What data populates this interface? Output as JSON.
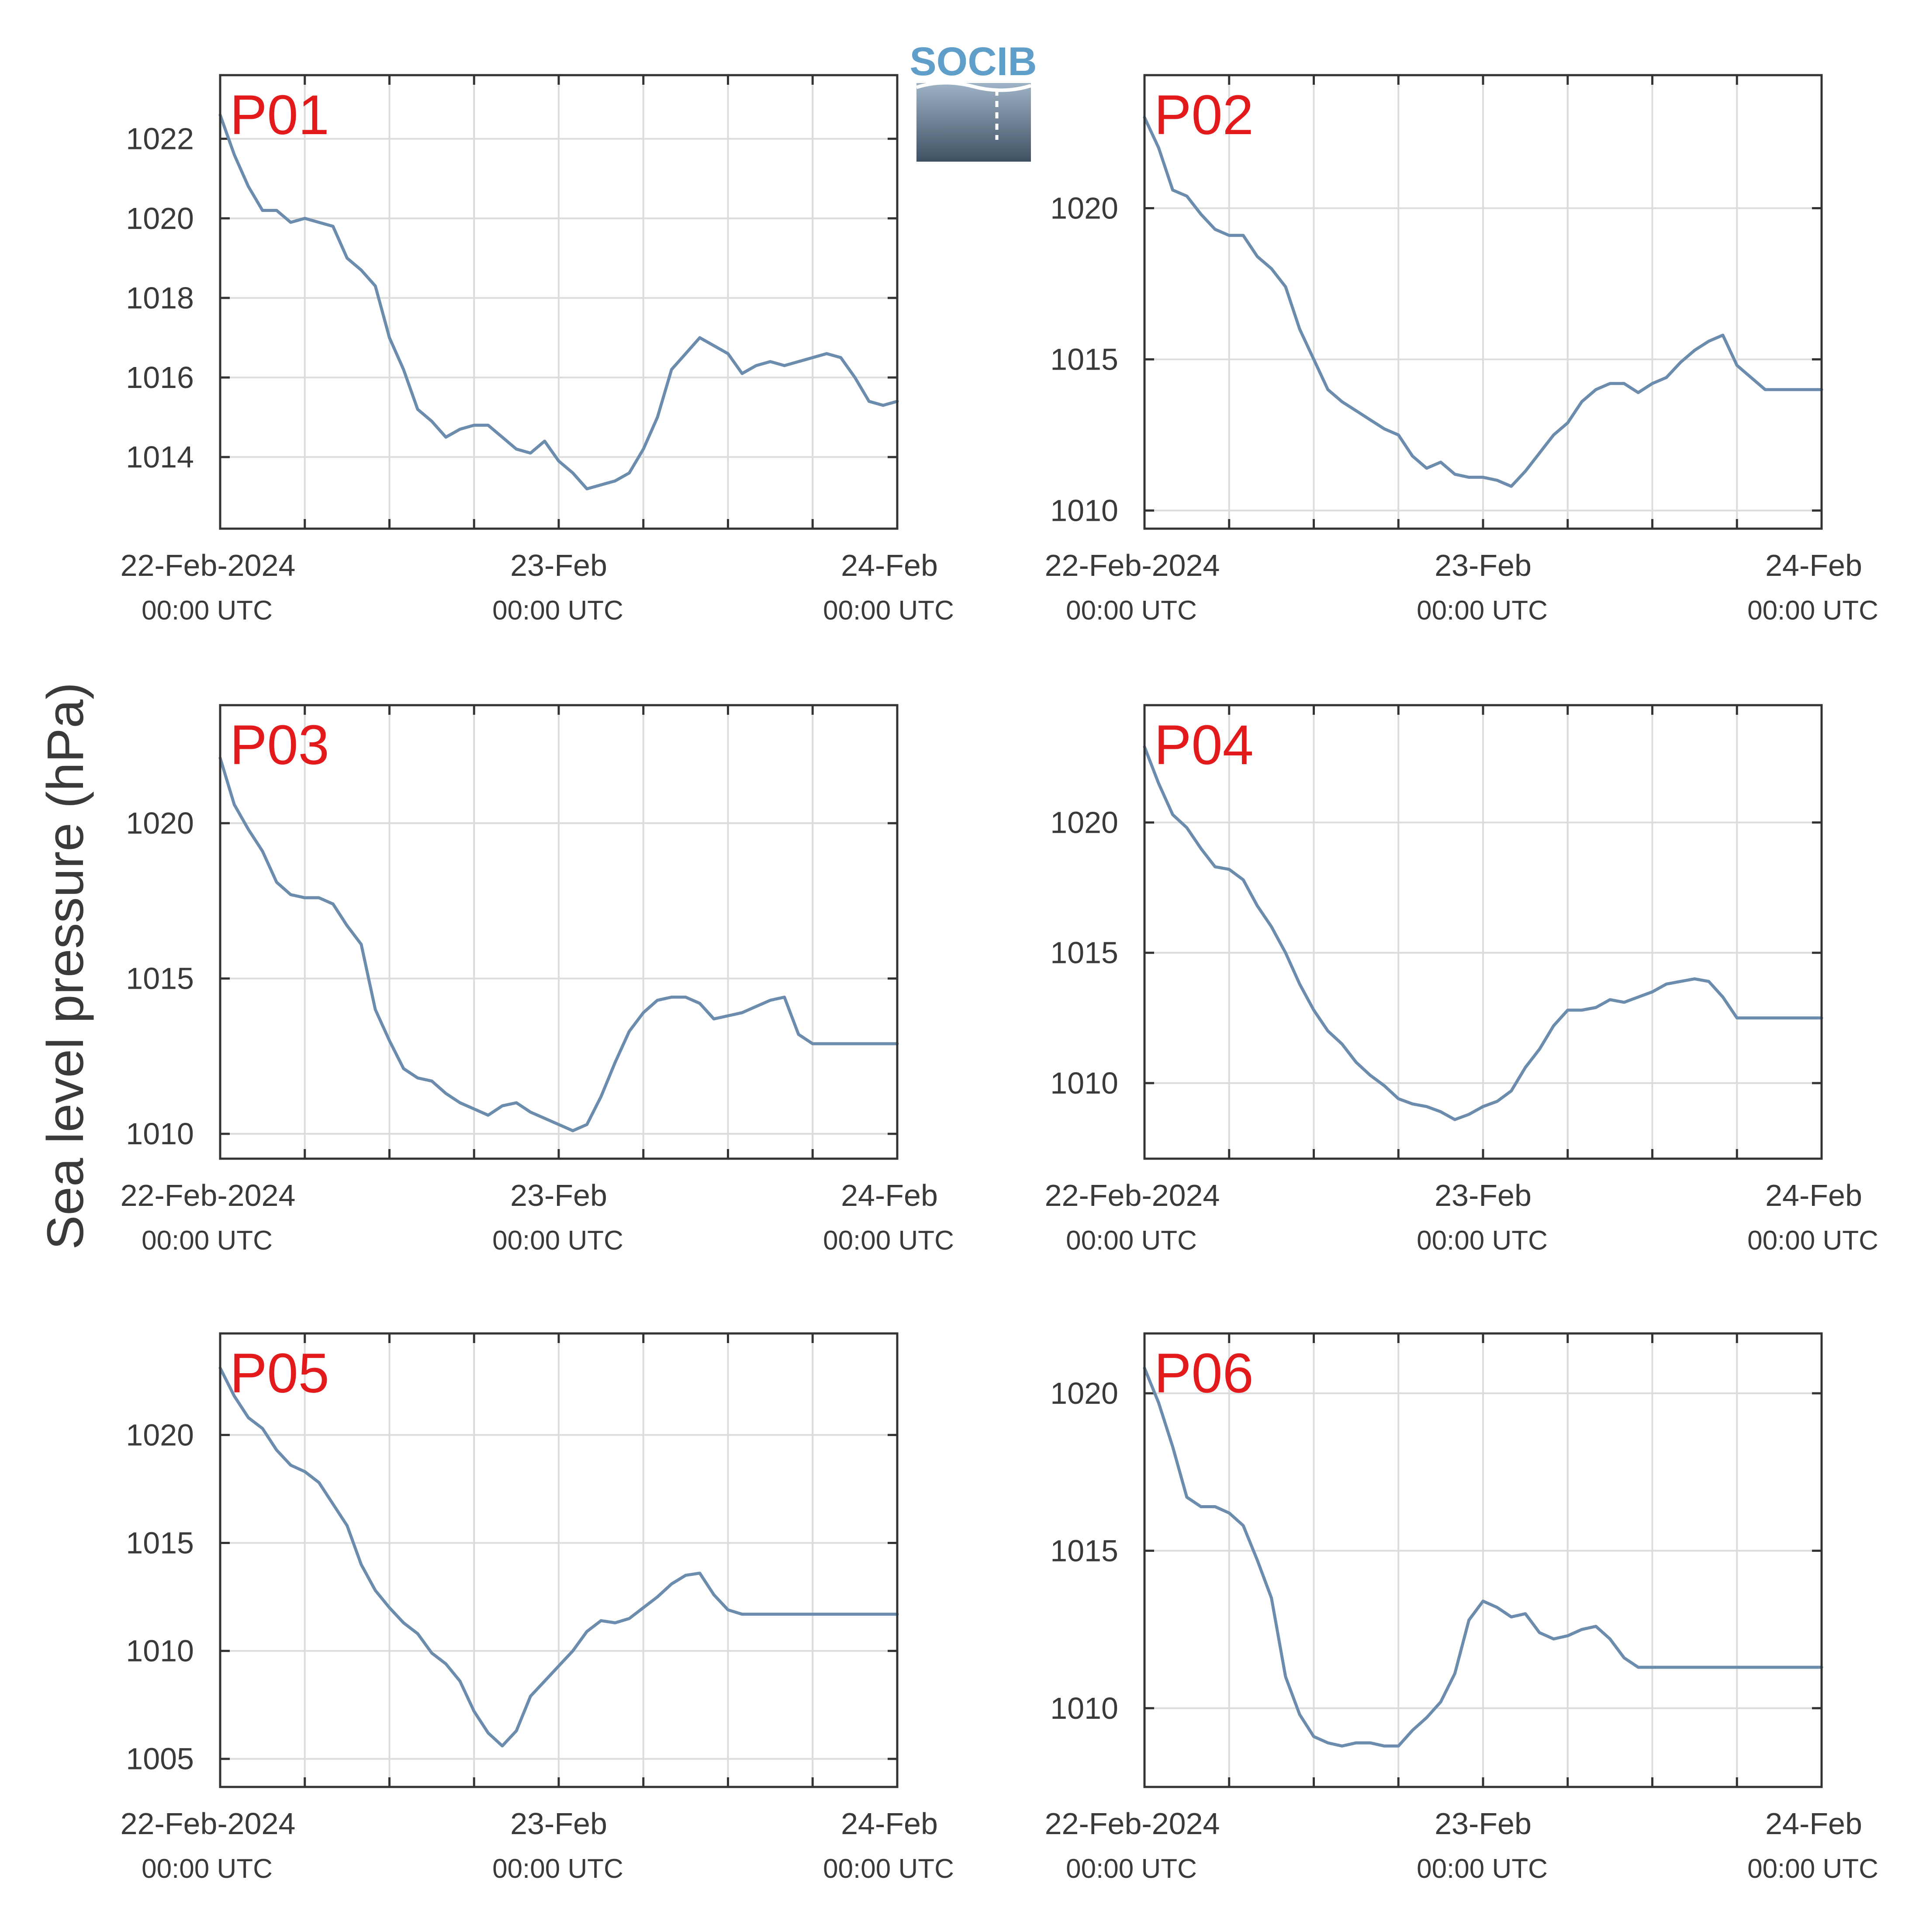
{
  "figure": {
    "ylabel": "Sea level pressure (hPa)",
    "logo_text": "SOCIB",
    "colors": {
      "series": "#6b8cad",
      "panel_label": "#e31a1c",
      "grid": "#dcdcdc",
      "frame": "#333333",
      "text": "#3a3a3a"
    }
  },
  "chart_data": [
    {
      "type": "line",
      "panel": "P01",
      "x_range": [
        "2024-02-22 00:00 UTC",
        "2024-02-24 00:00 UTC"
      ],
      "ylim": [
        1012.2,
        1023.6
      ],
      "yticks": [
        1014,
        1016,
        1018,
        1020,
        1022
      ],
      "xtick_labels": [
        {
          "main": "22-Feb-2024",
          "sub": "00:00 UTC"
        },
        {
          "main": "23-Feb",
          "sub": "00:00 UTC"
        },
        {
          "main": "24-Feb",
          "sub": "00:00 UTC"
        }
      ],
      "grid": true,
      "x_hours": [
        0,
        1,
        2,
        3,
        4,
        5,
        6,
        7,
        8,
        9,
        10,
        11,
        12,
        13,
        14,
        15,
        16,
        17,
        18,
        19,
        20,
        21,
        22,
        23,
        24,
        25,
        26,
        27,
        28,
        29,
        30,
        31,
        32,
        33,
        34,
        35,
        36,
        37,
        38,
        39,
        40,
        41,
        42,
        43,
        44,
        45,
        46,
        47,
        48
      ],
      "values": [
        1022.6,
        1021.6,
        1020.8,
        1020.2,
        1020.2,
        1019.9,
        1020.0,
        1019.9,
        1019.8,
        1019.0,
        1018.7,
        1018.3,
        1017.0,
        1016.2,
        1015.2,
        1014.9,
        1014.5,
        1014.7,
        1014.8,
        1014.8,
        1014.5,
        1014.2,
        1014.1,
        1014.4,
        1013.9,
        1013.6,
        1013.2,
        1013.3,
        1013.4,
        1013.6,
        1014.2,
        1015.0,
        1016.2,
        1016.6,
        1017.0,
        1016.8,
        1016.6,
        1016.1,
        1016.3,
        1016.4,
        1016.3,
        1016.4,
        1016.5,
        1016.6,
        1016.5,
        1016.0,
        1015.4,
        1015.3,
        1015.4
      ]
    },
    {
      "type": "line",
      "panel": "P02",
      "x_range": [
        "2024-02-22 00:00 UTC",
        "2024-02-24 00:00 UTC"
      ],
      "ylim": [
        1009.4,
        1024.4
      ],
      "yticks": [
        1010,
        1015,
        1020
      ],
      "xtick_labels": [
        {
          "main": "22-Feb-2024",
          "sub": "00:00 UTC"
        },
        {
          "main": "23-Feb",
          "sub": "00:00 UTC"
        },
        {
          "main": "24-Feb",
          "sub": "00:00 UTC"
        }
      ],
      "grid": true,
      "x_hours": [
        0,
        1,
        2,
        3,
        4,
        5,
        6,
        7,
        8,
        9,
        10,
        11,
        12,
        13,
        14,
        15,
        16,
        17,
        18,
        19,
        20,
        21,
        22,
        23,
        24,
        25,
        26,
        27,
        28,
        29,
        30,
        31,
        32,
        33,
        34,
        35,
        36,
        37,
        38,
        39,
        40,
        41,
        42,
        43,
        44,
        45,
        46,
        47,
        48
      ],
      "values": [
        1023.0,
        1022.0,
        1020.6,
        1020.4,
        1019.8,
        1019.3,
        1019.1,
        1019.1,
        1018.4,
        1018.0,
        1017.4,
        1016.0,
        1015.0,
        1014.0,
        1013.6,
        1013.3,
        1013.0,
        1012.7,
        1012.5,
        1011.8,
        1011.4,
        1011.6,
        1011.2,
        1011.1,
        1011.1,
        1011.0,
        1010.8,
        1011.3,
        1011.9,
        1012.5,
        1012.9,
        1013.6,
        1014.0,
        1014.2,
        1014.2,
        1013.9,
        1014.2,
        1014.4,
        1014.9,
        1015.3,
        1015.6,
        1015.8,
        1014.8,
        1014.4,
        1014.0,
        1014.0,
        1014.0,
        1014.0,
        1014.0
      ]
    },
    {
      "type": "line",
      "panel": "P03",
      "x_range": [
        "2024-02-22 00:00 UTC",
        "2024-02-24 00:00 UTC"
      ],
      "ylim": [
        1009.2,
        1023.8
      ],
      "yticks": [
        1010,
        1015,
        1020
      ],
      "xtick_labels": [
        {
          "main": "22-Feb-2024",
          "sub": "00:00 UTC"
        },
        {
          "main": "23-Feb",
          "sub": "00:00 UTC"
        },
        {
          "main": "24-Feb",
          "sub": "00:00 UTC"
        }
      ],
      "grid": true,
      "x_hours": [
        0,
        1,
        2,
        3,
        4,
        5,
        6,
        7,
        8,
        9,
        10,
        11,
        12,
        13,
        14,
        15,
        16,
        17,
        18,
        19,
        20,
        21,
        22,
        23,
        24,
        25,
        26,
        27,
        28,
        29,
        30,
        31,
        32,
        33,
        34,
        35,
        36,
        37,
        38,
        39,
        40,
        41,
        42,
        43,
        44,
        45,
        46,
        47,
        48
      ],
      "values": [
        1022.1,
        1020.6,
        1019.8,
        1019.1,
        1018.1,
        1017.7,
        1017.6,
        1017.6,
        1017.4,
        1016.7,
        1016.1,
        1014.0,
        1013.0,
        1012.1,
        1011.8,
        1011.7,
        1011.3,
        1011.0,
        1010.8,
        1010.6,
        1010.9,
        1011.0,
        1010.7,
        1010.5,
        1010.3,
        1010.1,
        1010.3,
        1011.2,
        1012.3,
        1013.3,
        1013.9,
        1014.3,
        1014.4,
        1014.4,
        1014.2,
        1013.7,
        1013.8,
        1013.9,
        1014.1,
        1014.3,
        1014.4,
        1013.2,
        1012.9,
        1012.9,
        1012.9,
        1012.9,
        1012.9,
        1012.9,
        1012.9
      ]
    },
    {
      "type": "line",
      "panel": "P04",
      "x_range": [
        "2024-02-22 00:00 UTC",
        "2024-02-24 00:00 UTC"
      ],
      "ylim": [
        1007.1,
        1024.5
      ],
      "yticks": [
        1010,
        1015,
        1020
      ],
      "xtick_labels": [
        {
          "main": "22-Feb-2024",
          "sub": "00:00 UTC"
        },
        {
          "main": "23-Feb",
          "sub": "00:00 UTC"
        },
        {
          "main": "24-Feb",
          "sub": "00:00 UTC"
        }
      ],
      "grid": true,
      "x_hours": [
        0,
        1,
        2,
        3,
        4,
        5,
        6,
        7,
        8,
        9,
        10,
        11,
        12,
        13,
        14,
        15,
        16,
        17,
        18,
        19,
        20,
        21,
        22,
        23,
        24,
        25,
        26,
        27,
        28,
        29,
        30,
        31,
        32,
        33,
        34,
        35,
        36,
        37,
        38,
        39,
        40,
        41,
        42,
        43,
        44,
        45,
        46,
        47,
        48
      ],
      "values": [
        1022.9,
        1021.5,
        1020.3,
        1019.8,
        1019.0,
        1018.3,
        1018.2,
        1017.8,
        1016.8,
        1016.0,
        1015.0,
        1013.8,
        1012.8,
        1012.0,
        1011.5,
        1010.8,
        1010.3,
        1009.9,
        1009.4,
        1009.2,
        1009.1,
        1008.9,
        1008.6,
        1008.8,
        1009.1,
        1009.3,
        1009.7,
        1010.6,
        1011.3,
        1012.2,
        1012.8,
        1012.8,
        1012.9,
        1013.2,
        1013.1,
        1013.3,
        1013.5,
        1013.8,
        1013.9,
        1014.0,
        1013.9,
        1013.3,
        1012.5,
        1012.5,
        1012.5,
        1012.5,
        1012.5,
        1012.5,
        1012.5
      ]
    },
    {
      "type": "line",
      "panel": "P05",
      "x_range": [
        "2024-02-22 00:00 UTC",
        "2024-02-24 00:00 UTC"
      ],
      "ylim": [
        1003.7,
        1024.7
      ],
      "yticks": [
        1005,
        1010,
        1015,
        1020
      ],
      "xtick_labels": [
        {
          "main": "22-Feb-2024",
          "sub": "00:00 UTC"
        },
        {
          "main": "23-Feb",
          "sub": "00:00 UTC"
        },
        {
          "main": "24-Feb",
          "sub": "00:00 UTC"
        }
      ],
      "grid": true,
      "x_hours": [
        0,
        1,
        2,
        3,
        4,
        5,
        6,
        7,
        8,
        9,
        10,
        11,
        12,
        13,
        14,
        15,
        16,
        17,
        18,
        19,
        20,
        21,
        22,
        23,
        24,
        25,
        26,
        27,
        28,
        29,
        30,
        31,
        32,
        33,
        34,
        35,
        36,
        37,
        38,
        39,
        40,
        41,
        42,
        43,
        44,
        45,
        46,
        47,
        48
      ],
      "values": [
        1023.1,
        1021.8,
        1020.8,
        1020.3,
        1019.3,
        1018.6,
        1018.3,
        1017.8,
        1016.8,
        1015.8,
        1014.0,
        1012.8,
        1012.0,
        1011.3,
        1010.8,
        1009.9,
        1009.4,
        1008.6,
        1007.2,
        1006.2,
        1005.6,
        1006.3,
        1007.9,
        1008.6,
        1009.3,
        1010.0,
        1010.9,
        1011.4,
        1011.3,
        1011.5,
        1012.0,
        1012.5,
        1013.1,
        1013.5,
        1013.6,
        1012.6,
        1011.9,
        1011.7,
        1011.7,
        1011.7,
        1011.7,
        1011.7,
        1011.7,
        1011.7,
        1011.7,
        1011.7,
        1011.7,
        1011.7,
        1011.7
      ]
    },
    {
      "type": "line",
      "panel": "P06",
      "x_range": [
        "2024-02-22 00:00 UTC",
        "2024-02-24 00:00 UTC"
      ],
      "ylim": [
        1007.5,
        1021.9
      ],
      "yticks": [
        1010,
        1015,
        1020
      ],
      "xtick_labels": [
        {
          "main": "22-Feb-2024",
          "sub": "00:00 UTC"
        },
        {
          "main": "23-Feb",
          "sub": "00:00 UTC"
        },
        {
          "main": "24-Feb",
          "sub": "00:00 UTC"
        }
      ],
      "grid": true,
      "x_hours": [
        0,
        1,
        2,
        3,
        4,
        5,
        6,
        7,
        8,
        9,
        10,
        11,
        12,
        13,
        14,
        15,
        16,
        17,
        18,
        19,
        20,
        21,
        22,
        23,
        24,
        25,
        26,
        27,
        28,
        29,
        30,
        31,
        32,
        33,
        34,
        35,
        36,
        37,
        38,
        39,
        40,
        41,
        42,
        43,
        44,
        45,
        46,
        47,
        48
      ],
      "values": [
        1020.8,
        1019.7,
        1018.3,
        1016.7,
        1016.4,
        1016.4,
        1016.2,
        1015.8,
        1014.7,
        1013.5,
        1011.0,
        1009.8,
        1009.1,
        1008.9,
        1008.8,
        1008.9,
        1008.9,
        1008.8,
        1008.8,
        1009.3,
        1009.7,
        1010.2,
        1011.1,
        1012.8,
        1013.4,
        1013.2,
        1012.9,
        1013.0,
        1012.4,
        1012.2,
        1012.3,
        1012.5,
        1012.6,
        1012.2,
        1011.6,
        1011.3,
        1011.3,
        1011.3,
        1011.3,
        1011.3,
        1011.3,
        1011.3,
        1011.3,
        1011.3,
        1011.3,
        1011.3,
        1011.3,
        1011.3,
        1011.3
      ]
    }
  ]
}
